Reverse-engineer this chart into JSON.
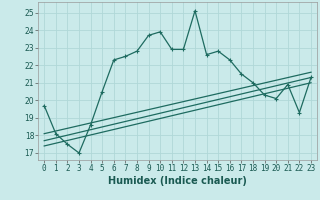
{
  "xlabel": "Humidex (Indice chaleur)",
  "bg_color": "#caeaea",
  "grid_color": "#b0d8d8",
  "line_color": "#1e6b60",
  "x_data": [
    0,
    1,
    2,
    3,
    4,
    5,
    6,
    7,
    8,
    9,
    10,
    11,
    12,
    13,
    14,
    15,
    16,
    17,
    18,
    19,
    20,
    21,
    22,
    23
  ],
  "y_main": [
    19.7,
    18.1,
    17.5,
    17.0,
    18.6,
    20.5,
    22.3,
    22.5,
    22.8,
    23.7,
    23.9,
    22.9,
    22.9,
    25.1,
    22.6,
    22.8,
    22.3,
    21.5,
    21.0,
    20.3,
    20.1,
    20.9,
    19.3,
    21.3
  ],
  "diag_lines": [
    {
      "x0": 0,
      "y0": 17.4,
      "x1": 23,
      "y1": 21.0
    },
    {
      "x0": 0,
      "y0": 17.7,
      "x1": 23,
      "y1": 21.3
    },
    {
      "x0": 0,
      "y0": 18.1,
      "x1": 23,
      "y1": 21.6
    }
  ],
  "ylim": [
    16.6,
    25.6
  ],
  "xlim": [
    -0.5,
    23.5
  ],
  "yticks": [
    17,
    18,
    19,
    20,
    21,
    22,
    23,
    24,
    25
  ],
  "xticks": [
    0,
    1,
    2,
    3,
    4,
    5,
    6,
    7,
    8,
    9,
    10,
    11,
    12,
    13,
    14,
    15,
    16,
    17,
    18,
    19,
    20,
    21,
    22,
    23
  ],
  "tick_fontsize": 5.5,
  "xlabel_fontsize": 7.0
}
